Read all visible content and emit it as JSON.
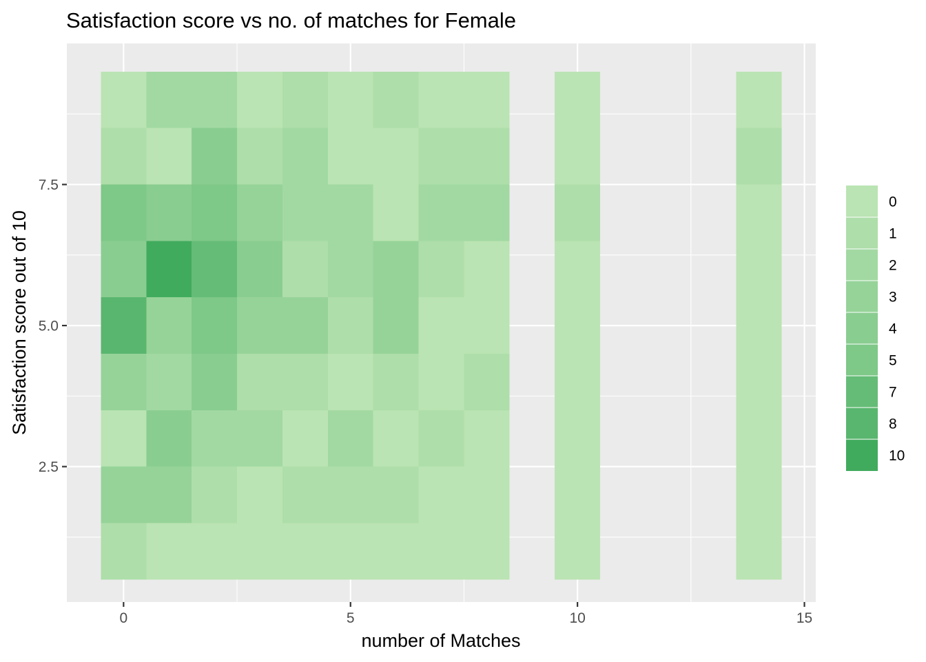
{
  "chart_data": {
    "type": "heatmap",
    "title": "Satisfaction score vs no. of matches for Female",
    "xlabel": "number of Matches",
    "ylabel": "Satisfaction score out of 10",
    "x_ticks": [
      0,
      5,
      10,
      15
    ],
    "x_tick_labels": [
      "0",
      "5",
      "10",
      "15"
    ],
    "y_ticks": [
      2.5,
      5.0,
      7.5
    ],
    "y_tick_labels": [
      "2.5",
      "5.0",
      "7.5"
    ],
    "xlim": [
      -1.25,
      15.25
    ],
    "ylim": [
      0.1,
      10.0
    ],
    "x_columns": [
      0,
      1,
      2,
      3,
      4,
      5,
      6,
      7,
      8,
      10,
      14
    ],
    "y_rows": [
      1,
      2,
      3,
      4,
      5,
      6,
      7,
      8,
      9
    ],
    "bin_width": 1,
    "counts": [
      [
        1,
        0,
        0,
        0,
        0,
        0,
        0,
        0,
        0,
        0,
        0
      ],
      [
        3,
        3,
        1,
        0,
        1,
        1,
        1,
        0,
        0,
        0,
        0
      ],
      [
        0,
        4,
        2,
        2,
        0,
        2,
        0,
        1,
        0,
        0,
        0
      ],
      [
        3,
        2,
        4,
        1,
        1,
        0,
        1,
        0,
        1,
        0,
        0
      ],
      [
        8,
        3,
        5,
        3,
        3,
        1,
        3,
        0,
        0,
        0,
        0
      ],
      [
        4,
        10,
        7,
        4,
        1,
        2,
        3,
        1,
        0,
        0,
        0
      ],
      [
        5,
        4,
        5,
        3,
        2,
        2,
        0,
        2,
        2,
        1,
        0
      ],
      [
        1,
        0,
        4,
        1,
        2,
        0,
        0,
        1,
        1,
        0,
        1
      ],
      [
        0,
        2,
        2,
        0,
        1,
        0,
        1,
        0,
        0,
        0,
        0
      ]
    ],
    "legend": {
      "labels": [
        "0",
        "1",
        "2",
        "3",
        "4",
        "5",
        "7",
        "8",
        "10"
      ],
      "values": [
        0,
        1,
        2,
        3,
        4,
        5,
        7,
        8,
        10
      ]
    },
    "colors": {
      "low": "#bae4b3",
      "high": "#41ab5d",
      "panel_background": "#ebebeb",
      "grid": "#ffffff",
      "tick_label": "#4d4d4d",
      "axis_tick": "#333333"
    },
    "grid": true,
    "legend_position": "right"
  }
}
